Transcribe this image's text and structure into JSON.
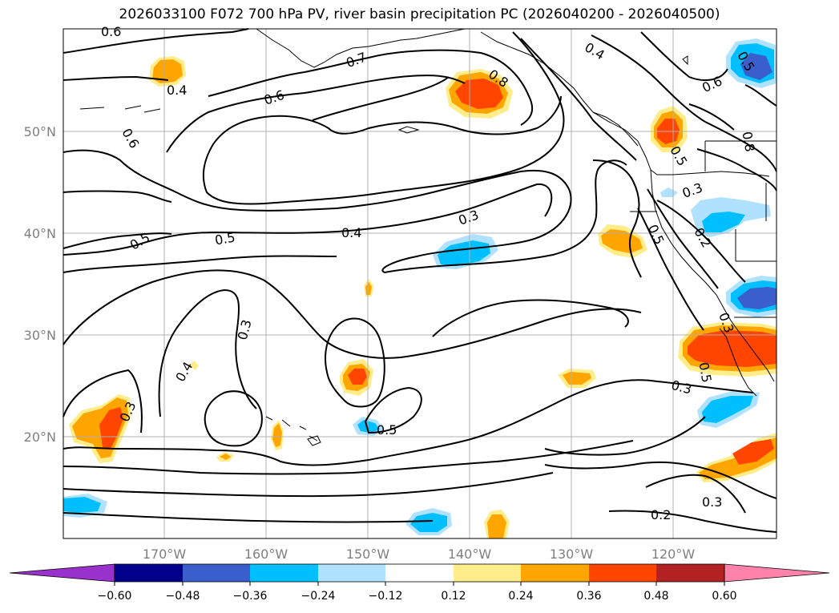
{
  "title": "2026033100 F072 700 hPa PV, river basin precipitation PC (2026040200 - 2026040500)",
  "map": {
    "lat_labels": [
      "50°N",
      "40°N",
      "30°N",
      "20°N"
    ],
    "lon_labels": [
      "170°W",
      "160°W",
      "150°W",
      "140°W",
      "130°W",
      "120°W"
    ],
    "contour_labels": [
      "0.6",
      "0.4",
      "0.7",
      "0.8",
      "0.4",
      "0.6",
      "0.5",
      "0.6",
      "0.6",
      "0.8",
      "0.5",
      "0.3",
      "0.3",
      "0.4",
      "0.5",
      "0.5",
      "0.5",
      "0.2",
      "0.3",
      "0.4",
      "0.3",
      "0.5",
      "0.5",
      "0.3",
      "0.3",
      "0.2",
      "0.3"
    ]
  },
  "colorbar": {
    "tick_labels": [
      "−0.60",
      "−0.48",
      "−0.36",
      "−0.24",
      "−0.12",
      "0.12",
      "0.24",
      "0.36",
      "0.48",
      "0.60"
    ],
    "colors": {
      "under": "#9932cc",
      "bins": [
        "#00008b",
        "#3a5fcd",
        "#00bfff",
        "#b0e2ff",
        "#ffffff",
        "#ffec8b",
        "#ffa500",
        "#ff4500",
        "#b22222"
      ],
      "over": "#ff82ab"
    }
  }
}
